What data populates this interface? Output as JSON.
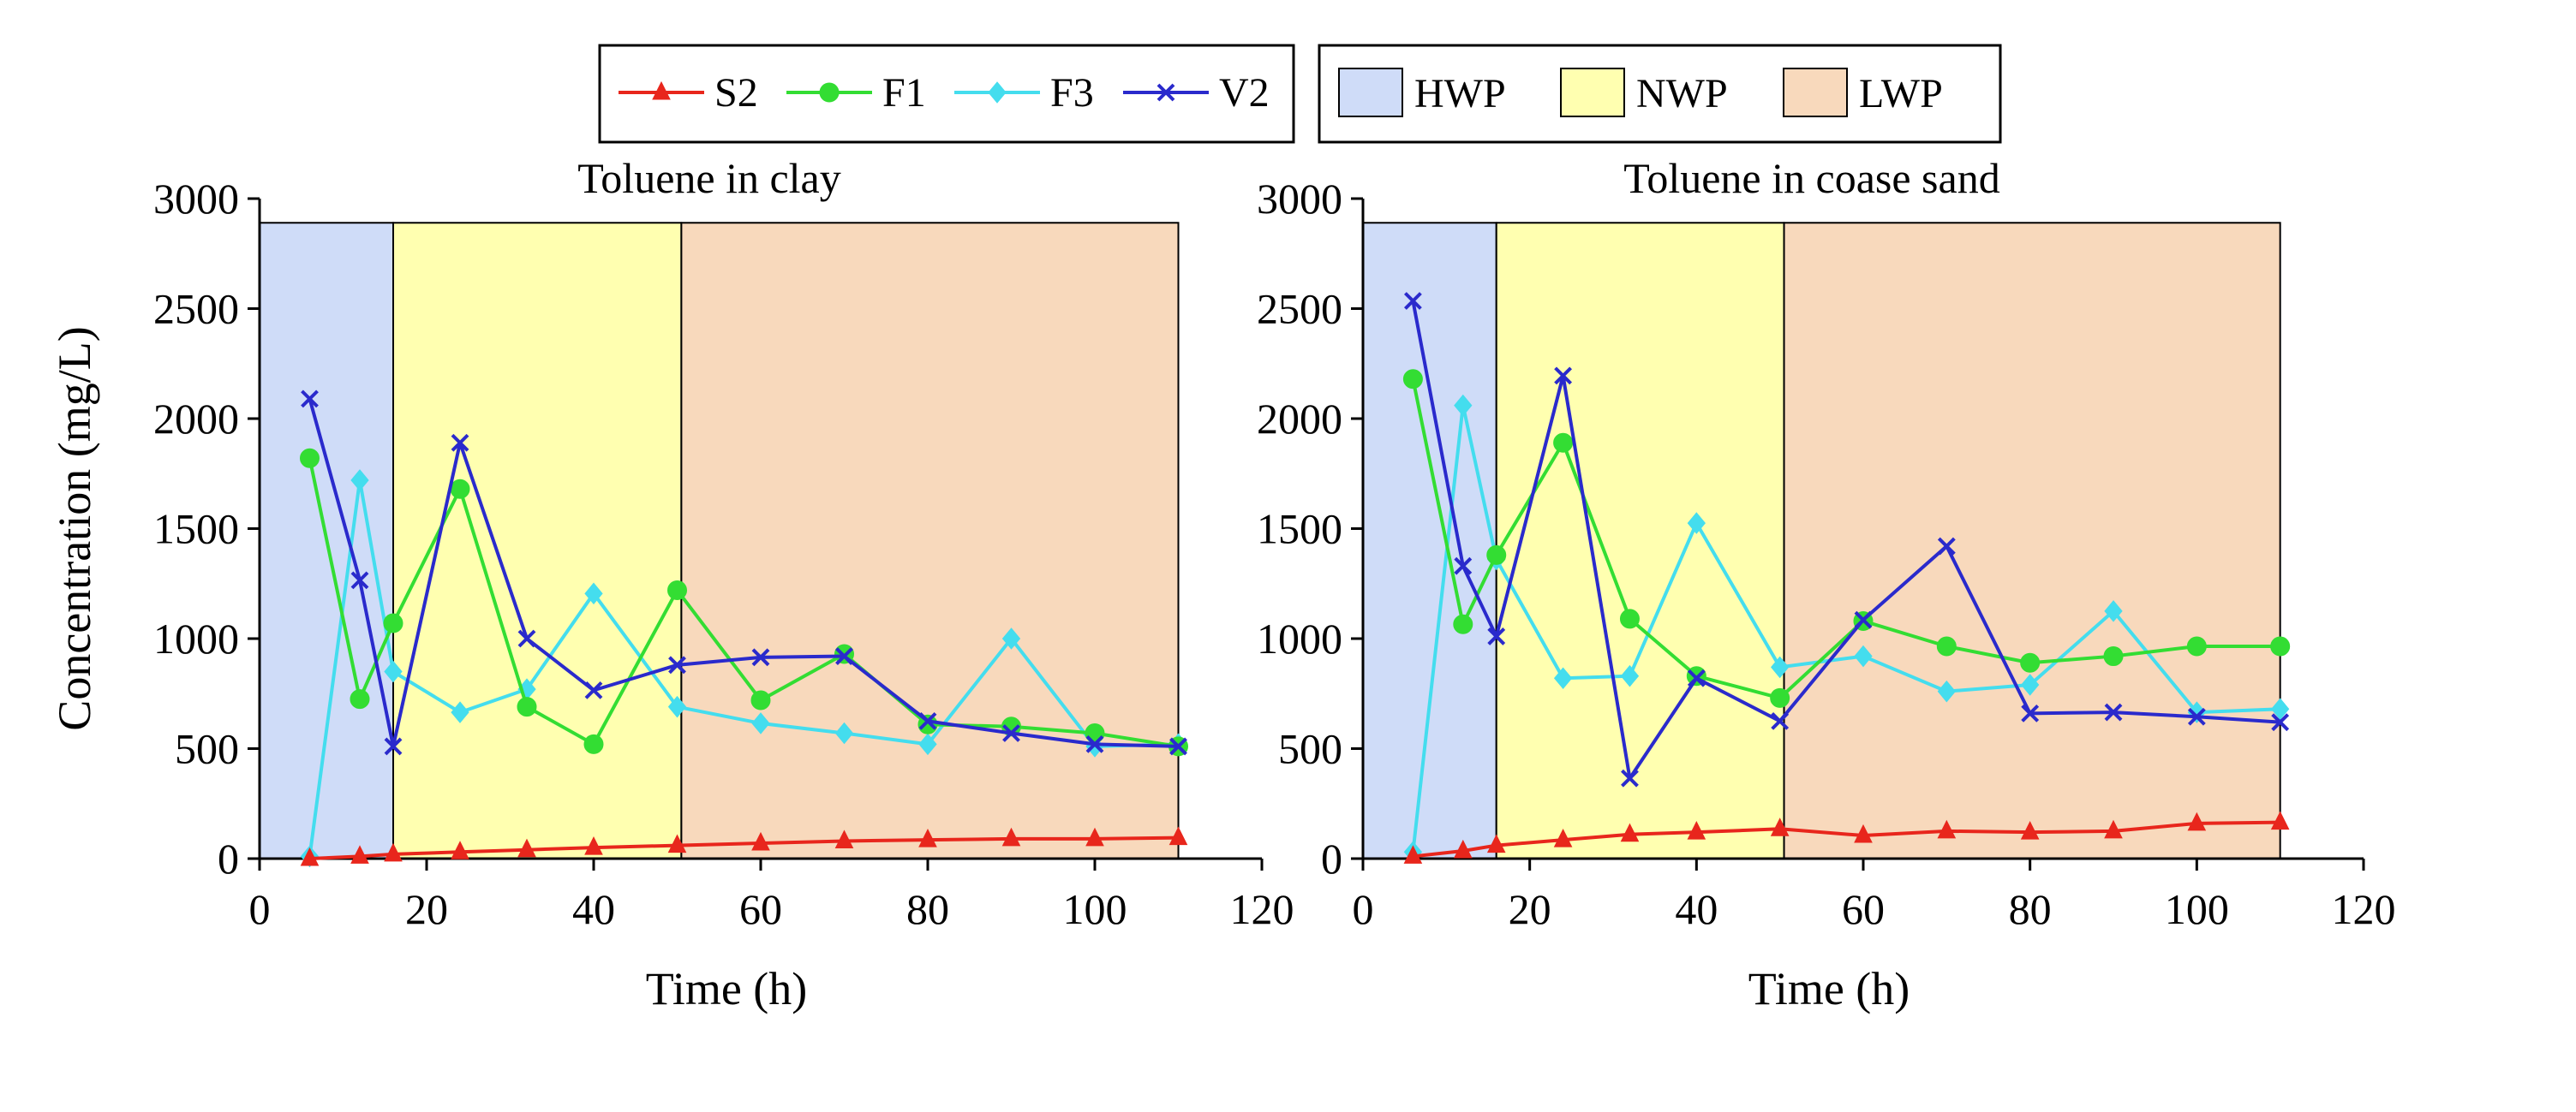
{
  "legend": {
    "series": [
      {
        "name": "S2",
        "color": "#e8261c",
        "marker": "triangle"
      },
      {
        "name": "F1",
        "color": "#33dd33",
        "marker": "circle"
      },
      {
        "name": "F3",
        "color": "#44ddee",
        "marker": "diamond"
      },
      {
        "name": "V2",
        "color": "#2a2acc",
        "marker": "x"
      }
    ],
    "phases": [
      {
        "name": "HWP",
        "color": "#cfdcf8"
      },
      {
        "name": "NWP",
        "color": "#ffffb0"
      },
      {
        "name": "LWP",
        "color": "#f8d9bc"
      }
    ]
  },
  "chart_data": [
    {
      "type": "line",
      "title": "Toluene in clay",
      "xlabel": "Time (h)",
      "ylabel": "Concentration (mg/L)",
      "xlim": [
        0,
        120
      ],
      "ylim": [
        0,
        3000
      ],
      "xticks": [
        "0",
        "20",
        "40",
        "60",
        "80",
        "100",
        "120"
      ],
      "yticks": [
        "0",
        "500",
        "1000",
        "1500",
        "2000",
        "2500",
        "3000"
      ],
      "phase_regions": [
        {
          "name": "HWP",
          "x": [
            0,
            16
          ],
          "y_top": 2890
        },
        {
          "name": "NWP",
          "x": [
            16,
            50.5
          ],
          "y_top": 2890
        },
        {
          "name": "LWP",
          "x": [
            50.5,
            110
          ],
          "y_top": 2890
        }
      ],
      "series": [
        {
          "name": "F3",
          "x": [
            6,
            12,
            16,
            24,
            32,
            40,
            50,
            60,
            70,
            80,
            90,
            100,
            110
          ],
          "values": [
            10,
            1720,
            850,
            665,
            770,
            1205,
            690,
            615,
            570,
            520,
            1000,
            510,
            520
          ]
        },
        {
          "name": "F1",
          "x": [
            6,
            12,
            16,
            24,
            32,
            40,
            50,
            60,
            70,
            80,
            90,
            100,
            110
          ],
          "values": [
            1820,
            725,
            1070,
            1680,
            690,
            520,
            1220,
            720,
            930,
            610,
            600,
            570,
            510
          ]
        },
        {
          "name": "V2",
          "x": [
            6,
            12,
            16,
            24,
            32,
            40,
            50,
            60,
            70,
            80,
            90,
            100,
            110
          ],
          "values": [
            2090,
            1265,
            510,
            1890,
            1000,
            765,
            880,
            915,
            920,
            625,
            570,
            520,
            510
          ]
        },
        {
          "name": "S2",
          "x": [
            6,
            12,
            16,
            24,
            32,
            40,
            50,
            60,
            70,
            80,
            90,
            100,
            110
          ],
          "values": [
            0,
            10,
            20,
            30,
            40,
            50,
            60,
            70,
            80,
            85,
            90,
            90,
            95
          ]
        }
      ]
    },
    {
      "type": "line",
      "title": "Toluene in coase sand",
      "xlabel": "Time (h)",
      "ylabel": "",
      "xlim": [
        0,
        120
      ],
      "ylim": [
        0,
        3000
      ],
      "xticks": [
        "0",
        "20",
        "40",
        "60",
        "80",
        "100",
        "120"
      ],
      "yticks": [
        "0",
        "500",
        "1000",
        "1500",
        "2000",
        "2500",
        "3000"
      ],
      "phase_regions": [
        {
          "name": "HWP",
          "x": [
            0,
            16
          ],
          "y_top": 2890
        },
        {
          "name": "NWP",
          "x": [
            16,
            50.5
          ],
          "y_top": 2890
        },
        {
          "name": "LWP",
          "x": [
            50.5,
            110
          ],
          "y_top": 2890
        }
      ],
      "series": [
        {
          "name": "F3",
          "x": [
            6,
            12,
            16,
            24,
            32,
            40,
            50,
            60,
            70,
            80,
            90,
            100,
            110
          ],
          "values": [
            30,
            2060,
            1360,
            820,
            830,
            1525,
            870,
            920,
            760,
            790,
            1125,
            665,
            680
          ]
        },
        {
          "name": "F1",
          "x": [
            6,
            12,
            16,
            24,
            32,
            40,
            50,
            60,
            70,
            80,
            90,
            100,
            110
          ],
          "values": [
            2180,
            1065,
            1380,
            1890,
            1090,
            830,
            730,
            1080,
            965,
            890,
            920,
            965,
            965
          ]
        },
        {
          "name": "V2",
          "x": [
            6,
            12,
            16,
            24,
            32,
            40,
            50,
            60,
            70,
            80,
            90,
            100,
            110
          ],
          "values": [
            2535,
            1330,
            1010,
            2195,
            365,
            820,
            625,
            1085,
            1420,
            660,
            665,
            645,
            620
          ]
        },
        {
          "name": "S2",
          "x": [
            6,
            12,
            16,
            24,
            32,
            40,
            50,
            60,
            70,
            80,
            90,
            100,
            110
          ],
          "values": [
            10,
            35,
            60,
            85,
            110,
            120,
            135,
            105,
            125,
            120,
            125,
            160,
            165
          ]
        }
      ]
    }
  ]
}
